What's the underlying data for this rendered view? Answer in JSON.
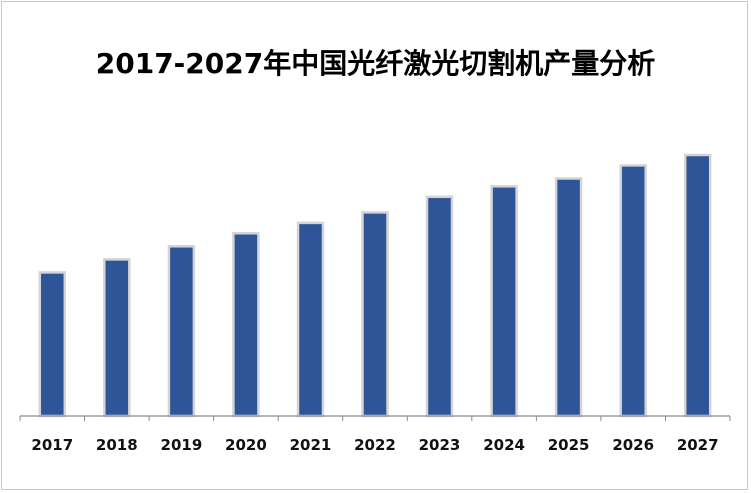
{
  "colors": {
    "bar_fill": "#2e5597",
    "bar_outline": "#d4d4d4",
    "axis": "#8c8c8c",
    "frame_border": "#c9c9c9"
  },
  "chart_data": {
    "type": "bar",
    "title": "2017-2027年中国光纤激光切割机产量分析",
    "xlabel": "",
    "ylabel": "",
    "categories": [
      "2017",
      "2018",
      "2019",
      "2020",
      "2021",
      "2022",
      "2023",
      "2024",
      "2025",
      "2026",
      "2027"
    ],
    "series": [
      {
        "values": [
          55,
          60,
          65,
          70,
          74,
          78,
          84,
          88,
          91,
          96,
          100
        ]
      }
    ],
    "ylim": [
      0,
      100
    ],
    "grid": false,
    "legend": "none",
    "y_axis_visible": false
  }
}
